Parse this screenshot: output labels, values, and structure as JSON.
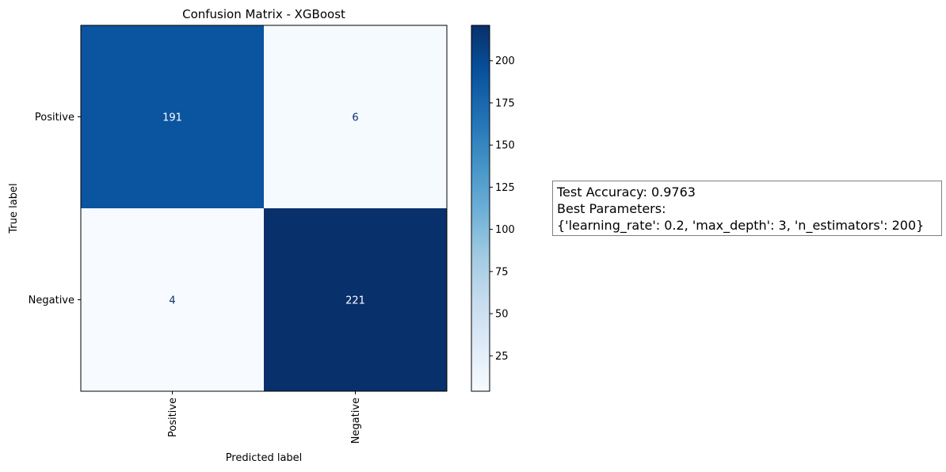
{
  "chart_data": {
    "type": "heatmap",
    "title": "Confusion Matrix - XGBoost",
    "xlabel": "Predicted label",
    "ylabel": "True label",
    "rows": [
      "Positive",
      "Negative"
    ],
    "columns": [
      "Positive",
      "Negative"
    ],
    "values": [
      [
        191,
        6
      ],
      [
        4,
        221
      ]
    ],
    "colormap": "Blues",
    "colorbar": {
      "min": 4,
      "max": 221,
      "ticks": [
        25,
        50,
        75,
        100,
        125,
        150,
        175,
        200
      ]
    },
    "grid": false
  },
  "info_box": {
    "accuracy_line": "Test Accuracy: 0.9763",
    "params_heading": "Best Parameters:",
    "params_value": "{'learning_rate': 0.2, 'max_depth': 3, 'n_estimators': 200}"
  },
  "colors": {
    "text_dark": "#08306b",
    "text_light": "#ffffff",
    "axis": "#000000",
    "box_border": "#7f7f7f"
  }
}
